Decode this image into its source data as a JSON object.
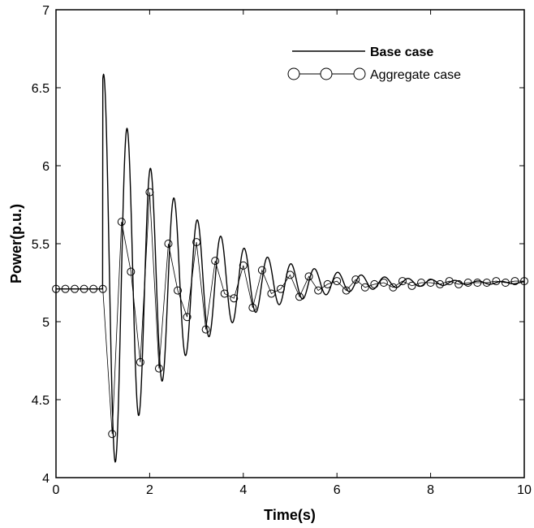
{
  "chart_data": {
    "type": "line",
    "title": "",
    "xlabel": "Time(s)",
    "ylabel": "Power(p.u.)",
    "xlim": [
      0,
      10
    ],
    "ylim": [
      4,
      7
    ],
    "xticks": [
      0,
      2,
      4,
      6,
      8,
      10
    ],
    "yticks": [
      4,
      4.5,
      5,
      5.5,
      6,
      6.5,
      7
    ],
    "xtick_labels": [
      "0",
      "2",
      "4",
      "6",
      "8",
      "10"
    ],
    "ytick_labels": [
      "4",
      "4.5",
      "5",
      "5.5",
      "6",
      "6.5",
      "7"
    ],
    "grid": false,
    "legend_position": "top-right",
    "series": [
      {
        "name": "Base case",
        "style": "solid-line",
        "color": "#000000",
        "model": {
          "steady": 5.21,
          "step_at": 1.0,
          "final": 5.25,
          "amplitude": 1.35,
          "decay": 0.6,
          "frequency_hz": 2.0,
          "phase_offset": 0.02
        }
      },
      {
        "name": "Aggregate case",
        "style": "line-with-open-circles",
        "color": "#000000",
        "x": [
          0,
          0.2,
          0.4,
          0.6,
          0.8,
          1.0,
          1.2,
          1.4,
          1.6,
          1.8,
          2.0,
          2.2,
          2.4,
          2.6,
          2.8,
          3.0,
          3.2,
          3.4,
          3.6,
          3.8,
          4.0,
          4.2,
          4.4,
          4.6,
          4.8,
          5.0,
          5.2,
          5.4,
          5.6,
          5.8,
          6.0,
          6.2,
          6.4,
          6.6,
          6.8,
          7.0,
          7.2,
          7.4,
          7.6,
          7.8,
          8.0,
          8.2,
          8.4,
          8.6,
          8.8,
          9.0,
          9.2,
          9.4,
          9.6,
          9.8,
          10.0
        ],
        "y": [
          5.21,
          5.21,
          5.21,
          5.21,
          5.21,
          5.21,
          4.28,
          5.64,
          5.32,
          4.74,
          5.83,
          4.7,
          5.5,
          5.2,
          5.03,
          5.51,
          4.95,
          5.39,
          5.18,
          5.15,
          5.36,
          5.09,
          5.33,
          5.18,
          5.21,
          5.3,
          5.16,
          5.29,
          5.2,
          5.24,
          5.26,
          5.2,
          5.27,
          5.22,
          5.24,
          5.25,
          5.22,
          5.26,
          5.23,
          5.25,
          5.25,
          5.24,
          5.26,
          5.24,
          5.25,
          5.25,
          5.25,
          5.26,
          5.25,
          5.26,
          5.26
        ]
      }
    ]
  }
}
